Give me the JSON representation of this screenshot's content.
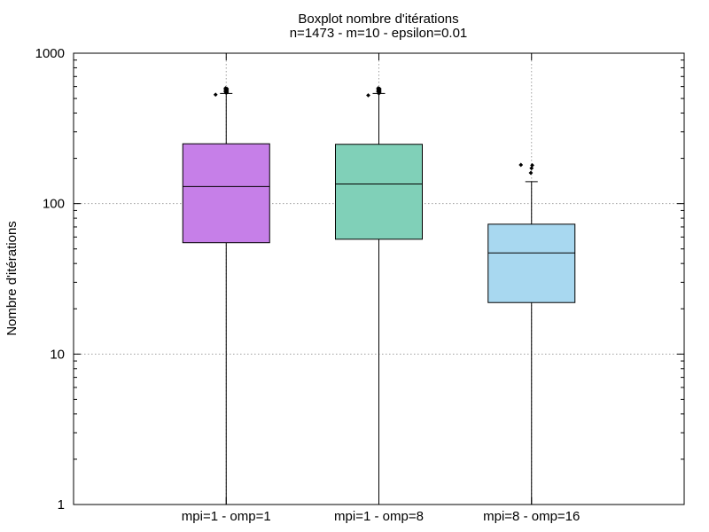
{
  "chart_data": {
    "type": "boxplot",
    "title": "Boxplot nombre d'itérations",
    "subtitle": "n=1473 - m=10 - epsilon=0.01",
    "xlabel": "",
    "ylabel": "Nombre d'itérations",
    "yscale": "log",
    "ylim": [
      1,
      1000
    ],
    "grid": true,
    "yticks": [
      {
        "value": 1,
        "label": "1"
      },
      {
        "value": 10,
        "label": "10"
      },
      {
        "value": 100,
        "label": "100"
      },
      {
        "value": 1000,
        "label": "1000"
      }
    ],
    "categories": [
      "mpi=1 - omp=1",
      "mpi=1 - omp=8",
      "mpi=8 - omp=16"
    ],
    "series": [
      {
        "name": "mpi=1 - omp=1",
        "color": "#c67fe8",
        "min": 1,
        "q1": 55,
        "median": 130,
        "q3": 250,
        "whisker_high": 540,
        "outliers": [
          530,
          545,
          550,
          555,
          560,
          565,
          570,
          575,
          580,
          585
        ]
      },
      {
        "name": "mpi=1 - omp=8",
        "color": "#80d0b8",
        "min": 1,
        "q1": 58,
        "median": 135,
        "q3": 248,
        "whisker_high": 540,
        "outliers": [
          525,
          540,
          550,
          555,
          560,
          565,
          570,
          575,
          580,
          585
        ]
      },
      {
        "name": "mpi=8 - omp=16",
        "color": "#a8d8f0",
        "min": 1,
        "q1": 22,
        "median": 47,
        "q3": 73,
        "whisker_high": 140,
        "outliers": [
          160,
          172,
          180,
          181
        ]
      }
    ]
  }
}
